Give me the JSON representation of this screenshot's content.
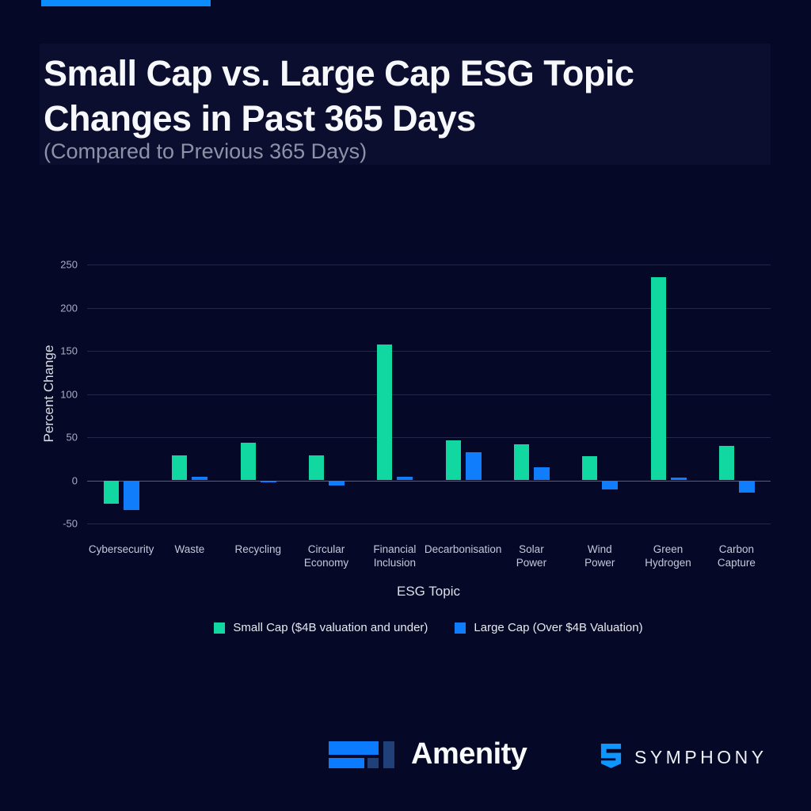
{
  "page": {
    "background": "#050827",
    "accent_bar_color": "#0b8cff"
  },
  "header": {
    "title_line1": "Small Cap vs. Large Cap ESG Topic",
    "title_line2": "Changes in Past 365 Days",
    "subtitle": "(Compared to Previous 365 Days)"
  },
  "chart_data": {
    "type": "bar",
    "title": "",
    "xlabel": "ESG Topic",
    "ylabel": "Percent Change",
    "ylim": [
      -50,
      250
    ],
    "yticks": [
      250,
      200,
      150,
      100,
      50,
      0,
      -50
    ],
    "grid": true,
    "legend_position": "bottom",
    "categories": [
      [
        "Cybersecurity"
      ],
      [
        "Waste"
      ],
      [
        "Recycling"
      ],
      [
        "Circular",
        "Economy"
      ],
      [
        "Financial",
        "Inclusion"
      ],
      [
        "Decarbonisation"
      ],
      [
        "Solar",
        "Power"
      ],
      [
        "Wind",
        "Power"
      ],
      [
        "Green",
        "Hydrogen"
      ],
      [
        "Carbon",
        "Capture"
      ]
    ],
    "series": [
      {
        "name": "Small Cap ($4B valuation and under)",
        "color": "#10d8a0",
        "values": [
          -27,
          29,
          44,
          29,
          157,
          46,
          42,
          28,
          235,
          40
        ]
      },
      {
        "name": "Large Cap (Over $4B Valuation)",
        "color": "#107dfc",
        "values": [
          -34,
          4,
          -2,
          -6,
          4,
          33,
          15,
          -11,
          3,
          -14
        ]
      }
    ]
  },
  "footer": {
    "amenity_label": "Amenity",
    "symphony_label": "SYMPHONY"
  }
}
